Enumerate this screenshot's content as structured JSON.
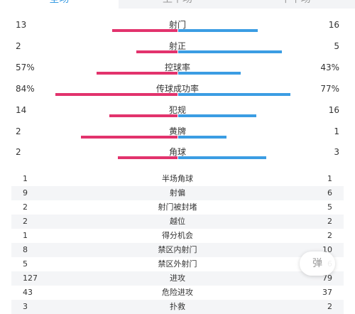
{
  "tabs": [
    "全场",
    "上半场",
    "下半场"
  ],
  "active_tab": 0,
  "colors": {
    "home": "#e2336d",
    "away": "#3b9de3",
    "accent": "#3b9de3"
  },
  "bar_stats": [
    {
      "label": "射门",
      "home": "13",
      "away": "16",
      "home_frac": 0.46,
      "away_frac": 0.56
    },
    {
      "label": "射正",
      "home": "2",
      "away": "5",
      "home_frac": 0.29,
      "away_frac": 0.73
    },
    {
      "label": "控球率",
      "home": "57%",
      "away": "43%",
      "home_frac": 0.57,
      "away_frac": 0.44
    },
    {
      "label": "传球成功率",
      "home": "84%",
      "away": "77%",
      "home_frac": 0.86,
      "away_frac": 0.79
    },
    {
      "label": "犯规",
      "home": "14",
      "away": "16",
      "home_frac": 0.48,
      "away_frac": 0.55
    },
    {
      "label": "黄牌",
      "home": "2",
      "away": "1",
      "home_frac": 0.68,
      "away_frac": 0.34
    },
    {
      "label": "角球",
      "home": "2",
      "away": "3",
      "home_frac": 0.42,
      "away_frac": 0.62
    }
  ],
  "table_stats": [
    {
      "label": "半场角球",
      "home": "1",
      "away": "1"
    },
    {
      "label": "射偏",
      "home": "9",
      "away": "6"
    },
    {
      "label": "射门被封堵",
      "home": "2",
      "away": "5"
    },
    {
      "label": "越位",
      "home": "2",
      "away": "2"
    },
    {
      "label": "得分机会",
      "home": "1",
      "away": "2"
    },
    {
      "label": "禁区内射门",
      "home": "8",
      "away": "10"
    },
    {
      "label": "禁区外射门",
      "home": "5",
      "away": "6"
    },
    {
      "label": "进攻",
      "home": "127",
      "away": "79"
    },
    {
      "label": "危险进攻",
      "home": "43",
      "away": "37"
    },
    {
      "label": "扑救",
      "home": "3",
      "away": "2"
    }
  ],
  "danmu_label": "弹"
}
